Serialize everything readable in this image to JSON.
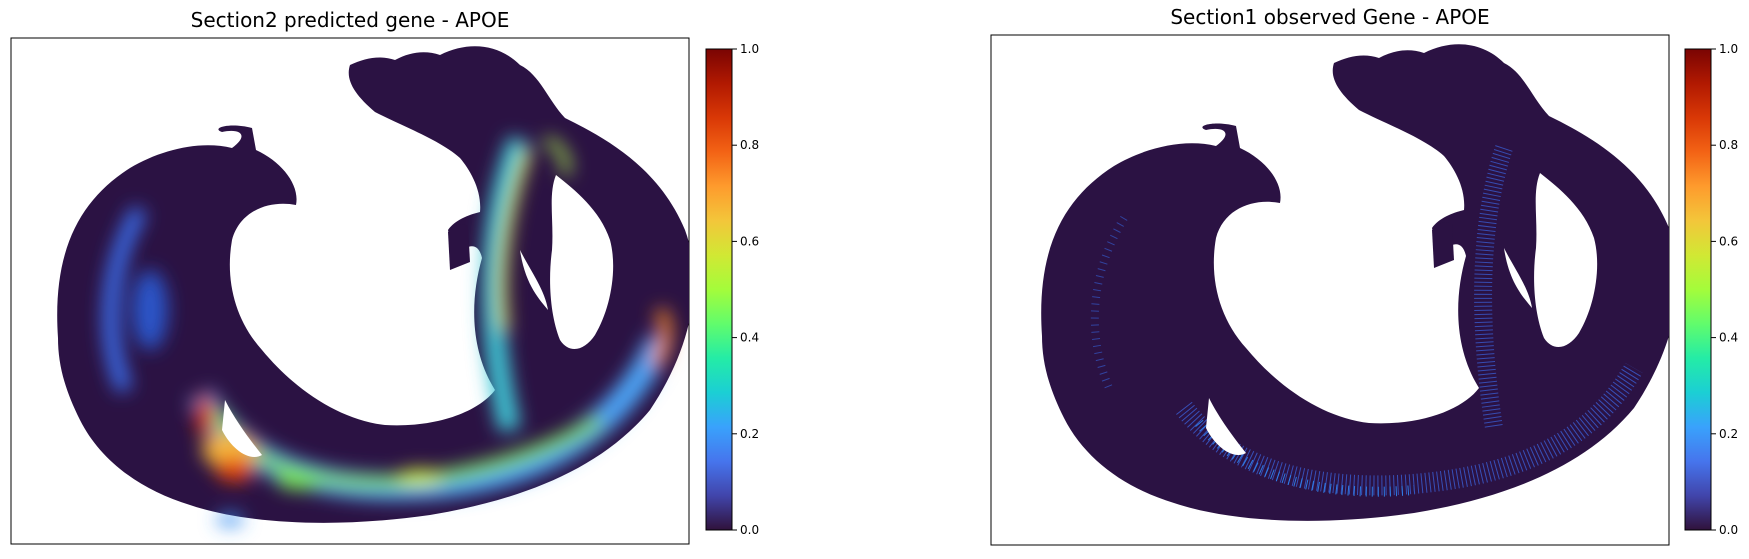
{
  "colors": {
    "background_tissue": "#2b1243",
    "colormap": "turbo",
    "colormap_stops": [
      "#30123b",
      "#4145ab",
      "#4675ed",
      "#39a2fc",
      "#1bcfd4",
      "#24eca6",
      "#61fc6c",
      "#a4fc3b",
      "#d1e834",
      "#f3c63a",
      "#fe9b2d",
      "#f36315",
      "#d93806",
      "#b11901",
      "#7a0403"
    ]
  },
  "chart_data": [
    {
      "type": "heatmap",
      "title": "Section2 predicted gene - APOE",
      "xlabel": "",
      "ylabel": "",
      "colorbar": {
        "label": "",
        "range": [
          0.0,
          1.0
        ],
        "ticks": [
          "0.0",
          "0.2",
          "0.4",
          "0.6",
          "0.8",
          "1.0"
        ]
      },
      "grid": false,
      "expression_regions": [
        {
          "region": "lower-left ventricular wall",
          "value": 0.85
        },
        {
          "region": "bottom arc",
          "value": 0.45
        },
        {
          "region": "septum ridge",
          "value": 0.55
        },
        {
          "region": "right outer edge",
          "value": 0.75
        },
        {
          "region": "left outer rim",
          "value": 0.25
        },
        {
          "region": "background tissue",
          "value": 0.0
        }
      ]
    },
    {
      "type": "heatmap",
      "title": "Section1 observed Gene - APOE",
      "xlabel": "",
      "ylabel": "",
      "colorbar": {
        "label": "",
        "range": [
          0.0,
          1.0
        ],
        "ticks": [
          "0.0",
          "0.2",
          "0.4",
          "0.6",
          "0.8",
          "1.0"
        ]
      },
      "grid": false,
      "expression_regions": [
        {
          "region": "bottom arc (speckled)",
          "value": 0.2
        },
        {
          "region": "septum ridge (speckled)",
          "value": 0.15
        },
        {
          "region": "background tissue",
          "value": 0.0
        }
      ]
    }
  ]
}
